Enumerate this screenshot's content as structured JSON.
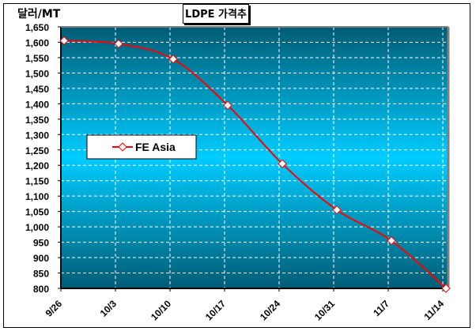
{
  "chart_data": {
    "type": "line",
    "title": "LDPE 가격추이",
    "ylabel": "달러/MT",
    "xlabel": "",
    "categories": [
      "9/26",
      "10/3",
      "10/10",
      "10/17",
      "10/24",
      "10/31",
      "11/7",
      "11/14"
    ],
    "series": [
      {
        "name": "FE Asia",
        "color": "#ff0000",
        "marker": "diamond-open",
        "values": [
          1605,
          1595,
          1545,
          1395,
          1205,
          1055,
          955,
          800
        ]
      }
    ],
    "ylim": [
      800,
      1650
    ],
    "ytick_step": 50,
    "yticks": [
      "800",
      "850",
      "900",
      "950",
      "1,000",
      "1,050",
      "1,100",
      "1,150",
      "1,200",
      "1,250",
      "1,300",
      "1,350",
      "1,400",
      "1,450",
      "1,500",
      "1,550",
      "1,600",
      "1,650"
    ],
    "grid": true,
    "legend": "middle-left",
    "colors": {
      "plot_dark": "#005c75",
      "plot_light": "#00ccff",
      "line": "#ff0000"
    }
  }
}
